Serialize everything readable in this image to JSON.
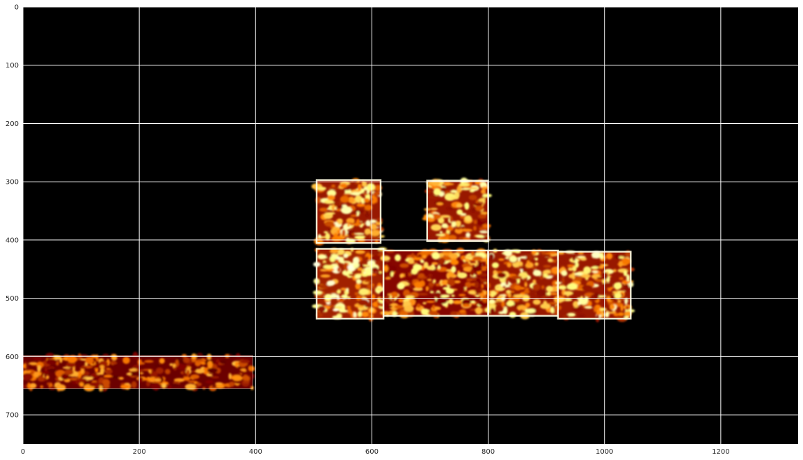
{
  "chart_data": {
    "type": "heatmap",
    "title": "",
    "xlabel": "",
    "ylabel": "",
    "colormap": "afmhot",
    "background_color": "#000000",
    "grid": true,
    "grid_color": "#ffffff",
    "x_range": [
      0,
      1333
    ],
    "y_range": [
      0,
      750
    ],
    "y_inverted": true,
    "x_ticks": [
      0,
      200,
      400,
      600,
      800,
      1000,
      1200
    ],
    "x_tick_labels": [
      "0",
      "200",
      "400",
      "600",
      "800",
      "1000",
      "1200"
    ],
    "y_ticks": [
      0,
      100,
      200,
      300,
      400,
      500,
      600,
      700
    ],
    "y_tick_labels": [
      "0",
      "100",
      "200",
      "300",
      "400",
      "500",
      "600",
      "700"
    ],
    "regions": [
      {
        "x0": 505,
        "x1": 615,
        "y0": 297,
        "y1": 405,
        "intensity": 0.85
      },
      {
        "x0": 695,
        "x1": 800,
        "y0": 298,
        "y1": 402,
        "intensity": 0.85
      },
      {
        "x0": 505,
        "x1": 620,
        "y0": 415,
        "y1": 535,
        "intensity": 0.9
      },
      {
        "x0": 620,
        "x1": 800,
        "y0": 418,
        "y1": 530,
        "intensity": 0.75
      },
      {
        "x0": 800,
        "x1": 920,
        "y0": 418,
        "y1": 530,
        "intensity": 0.85
      },
      {
        "x0": 920,
        "x1": 1045,
        "y0": 420,
        "y1": 535,
        "intensity": 0.85
      },
      {
        "x0": 0,
        "x1": 395,
        "y0": 598,
        "y1": 655,
        "intensity": 0.6
      }
    ]
  }
}
